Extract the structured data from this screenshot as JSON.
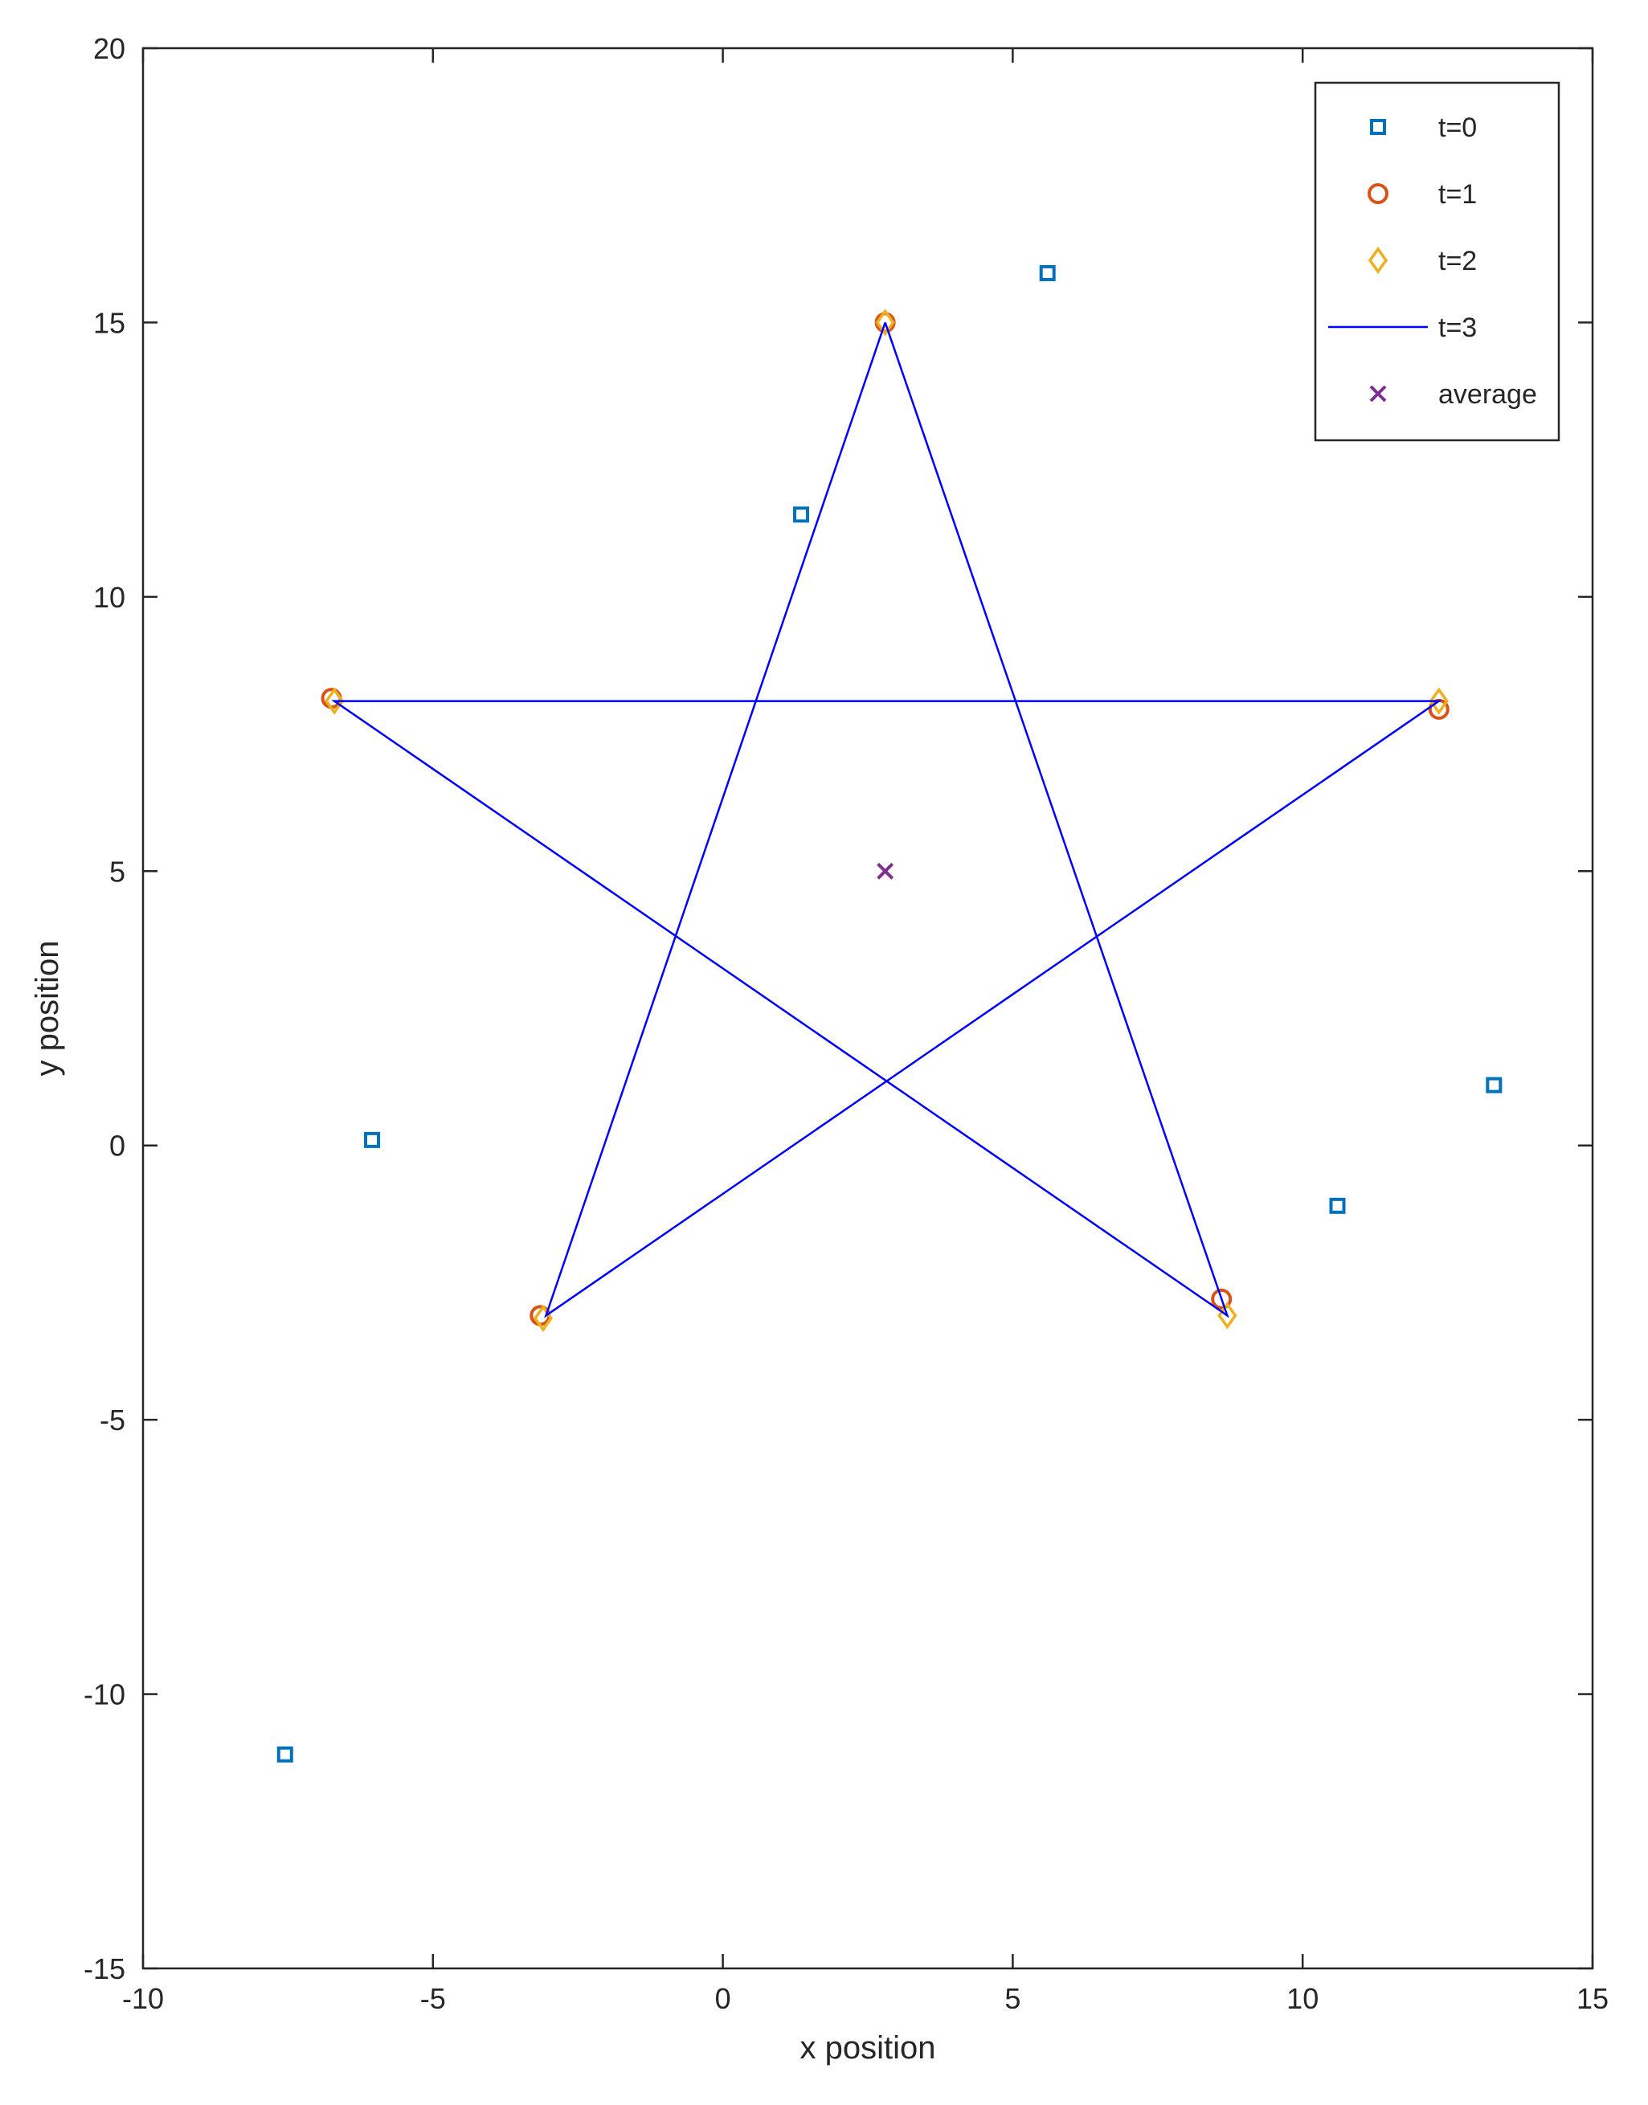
{
  "chart_data": {
    "type": "scatter",
    "xlabel": "x position",
    "ylabel": "y position",
    "xlim": [
      -10,
      15
    ],
    "ylim": [
      -15,
      20
    ],
    "xticks": [
      -10,
      -5,
      0,
      5,
      10,
      15
    ],
    "yticks": [
      -15,
      -10,
      -5,
      0,
      5,
      10,
      15,
      20
    ],
    "grid": false,
    "legend_position": "top-right",
    "series": [
      {
        "name": "t=0",
        "marker": "square",
        "color": "#0072BD",
        "points": [
          [
            -7.55,
            -11.1
          ],
          [
            -6.05,
            0.1
          ],
          [
            1.35,
            11.5
          ],
          [
            5.6,
            15.9
          ],
          [
            10.6,
            -1.1
          ],
          [
            13.3,
            1.1
          ]
        ]
      },
      {
        "name": "t=1",
        "marker": "circle",
        "color": "#D95319",
        "points": [
          [
            2.8,
            15.0
          ],
          [
            -6.75,
            8.15
          ],
          [
            12.35,
            7.95
          ],
          [
            -3.15,
            -3.1
          ],
          [
            8.6,
            -2.8
          ]
        ]
      },
      {
        "name": "t=2",
        "marker": "diamond",
        "color": "#EDB120",
        "points": [
          [
            2.8,
            15.0
          ],
          [
            -6.7,
            8.1
          ],
          [
            12.35,
            8.1
          ],
          [
            -3.1,
            -3.15
          ],
          [
            8.7,
            -3.1
          ]
        ]
      },
      {
        "name": "t=3",
        "marker": "line",
        "color": "#0000FF",
        "points": [
          [
            2.8,
            15.0
          ],
          [
            -3.05,
            -3.1
          ],
          [
            12.35,
            8.1
          ],
          [
            -6.7,
            8.1
          ],
          [
            8.7,
            -3.1
          ],
          [
            2.8,
            15.0
          ]
        ]
      },
      {
        "name": "average",
        "marker": "x",
        "color": "#7E2F8E",
        "points": [
          [
            2.8,
            5.0
          ]
        ]
      }
    ]
  }
}
